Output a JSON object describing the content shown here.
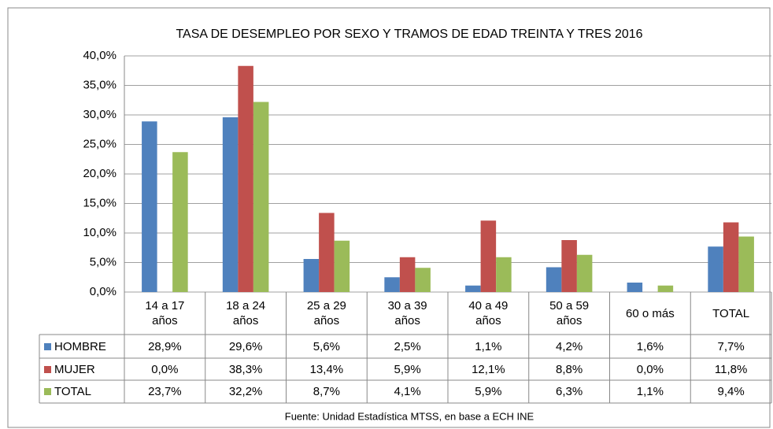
{
  "chart_data": {
    "type": "bar",
    "title": "TASA DE DESEMPLEO POR SEXO Y TRAMOS DE EDAD TREINTA Y TRES  2016",
    "categories": [
      "14 a 17 años",
      "18 a 24 años",
      "25 a 29 años",
      "30 a 39 años",
      "40 a 49 años",
      "50 a 59 años",
      "60 o más",
      "TOTAL"
    ],
    "series": [
      {
        "name": "HOMBRE",
        "color": "#4f81bd",
        "values": [
          28.9,
          29.6,
          5.6,
          2.5,
          1.1,
          4.2,
          1.6,
          7.7
        ],
        "value_labels": [
          "28,9%",
          "29,6%",
          "5,6%",
          "2,5%",
          "1,1%",
          "4,2%",
          "1,6%",
          "7,7%"
        ]
      },
      {
        "name": "MUJER",
        "color": "#c0504d",
        "values": [
          0.0,
          38.3,
          13.4,
          5.9,
          12.1,
          8.8,
          0.0,
          11.8
        ],
        "value_labels": [
          "0,0%",
          "38,3%",
          "13,4%",
          "5,9%",
          "12,1%",
          "8,8%",
          "0,0%",
          "11,8%"
        ]
      },
      {
        "name": "TOTAL",
        "color": "#9bbb59",
        "values": [
          23.7,
          32.2,
          8.7,
          4.1,
          5.9,
          6.3,
          1.1,
          9.4
        ],
        "value_labels": [
          "23,7%",
          "32,2%",
          "8,7%",
          "4,1%",
          "5,9%",
          "6,3%",
          "1,1%",
          "9,4%"
        ]
      }
    ],
    "ylim": [
      0,
      40
    ],
    "yticks": [
      {
        "value": 0,
        "label": "0,0%"
      },
      {
        "value": 5,
        "label": "5,0%"
      },
      {
        "value": 10,
        "label": "10,0%"
      },
      {
        "value": 15,
        "label": "15,0%"
      },
      {
        "value": 20,
        "label": "20,0%"
      },
      {
        "value": 25,
        "label": "25,0%"
      },
      {
        "value": 30,
        "label": "30,0%"
      },
      {
        "value": 35,
        "label": "35,0%"
      },
      {
        "value": 40,
        "label": "40,0%"
      }
    ],
    "grid": true,
    "source": "Fuente: Unidad Estadística MTSS, en base a ECH INE"
  }
}
